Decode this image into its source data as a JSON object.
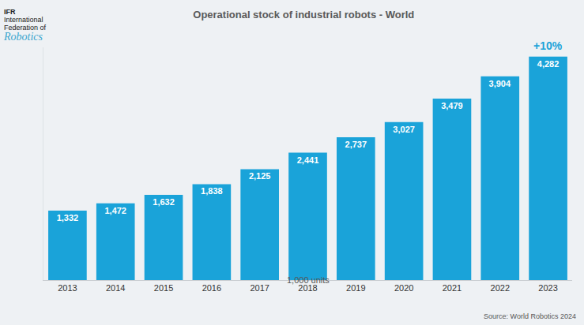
{
  "chart_data": {
    "type": "bar",
    "title": "Operational stock of industrial robots - World",
    "subtitle": "1,000 units",
    "categories": [
      "2013",
      "2014",
      "2015",
      "2016",
      "2017",
      "2018",
      "2019",
      "2020",
      "2021",
      "2022",
      "2023"
    ],
    "values": [
      1332,
      1472,
      1632,
      1838,
      2125,
      2441,
      2737,
      3027,
      3479,
      3904,
      4282
    ],
    "value_labels": [
      "1,332",
      "1,472",
      "1,632",
      "1,838",
      "2,125",
      "2,441",
      "2,737",
      "3,027",
      "3,479",
      "3,904",
      "4,282"
    ],
    "color": "#1aa3d9",
    "ylim": [
      0,
      4460
    ],
    "yticks": [],
    "grid": false,
    "data_labels": true,
    "tick_labels": "x",
    "annotations": [
      {
        "text": "+10%",
        "category": "2023"
      }
    ],
    "logo": [
      "IFR",
      "International",
      "Federation of",
      "Robotics"
    ],
    "source": "Source: World Robotics 2024"
  }
}
